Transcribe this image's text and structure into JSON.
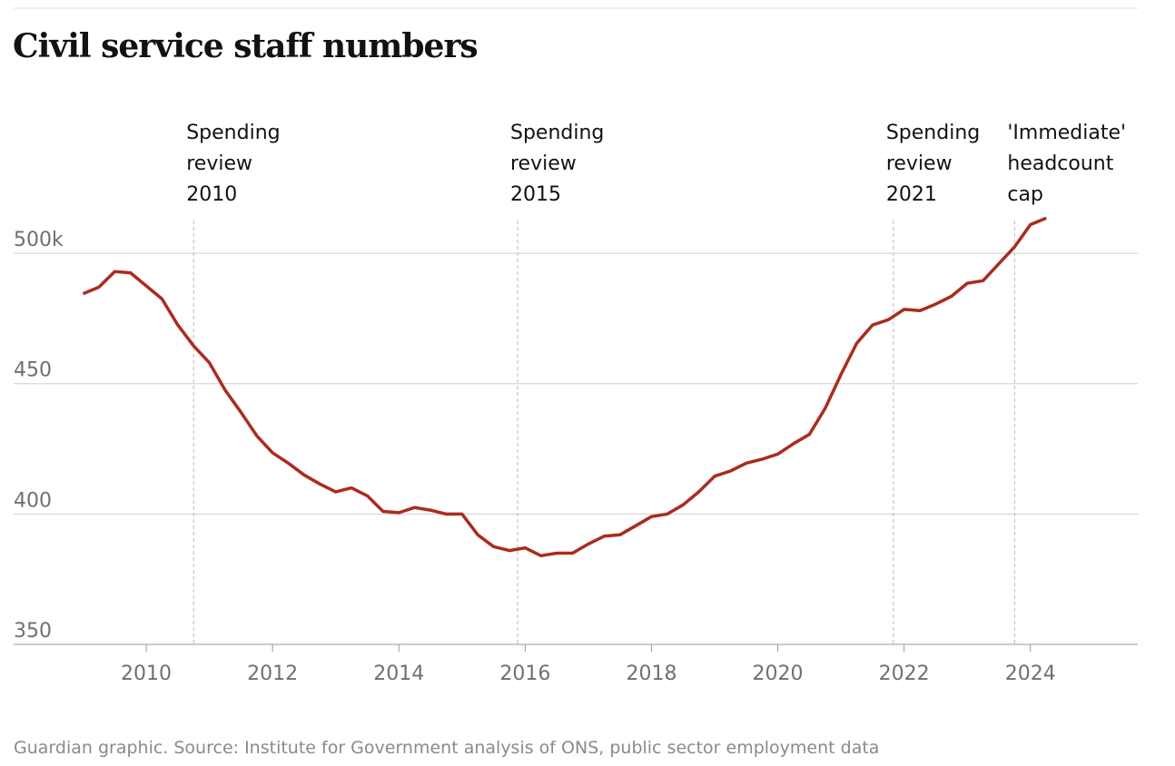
{
  "chart_data": {
    "type": "line",
    "title": "Civil service staff numbers",
    "source": "Guardian graphic. Source: Institute for Government analysis of ONS, public sector employment data",
    "color": "#ab2b1f",
    "x": [
      2009,
      2009.25,
      2009.5,
      2009.75,
      2010,
      2010.25,
      2010.5,
      2010.75,
      2011,
      2011.25,
      2011.5,
      2011.75,
      2012,
      2012.25,
      2012.5,
      2012.75,
      2013,
      2013.25,
      2013.5,
      2013.75,
      2014,
      2014.25,
      2014.5,
      2014.75,
      2015,
      2015.25,
      2015.5,
      2015.75,
      2016,
      2016.25,
      2016.5,
      2016.75,
      2017,
      2017.25,
      2017.5,
      2017.75,
      2018,
      2018.25,
      2018.5,
      2018.75,
      2019,
      2019.25,
      2019.5,
      2019.75,
      2020,
      2020.25,
      2020.5,
      2020.75,
      2021,
      2021.25,
      2021.5,
      2021.75,
      2022,
      2022.25,
      2022.5,
      2022.75,
      2023,
      2023.25,
      2023.5,
      2023.75,
      2024,
      2024.25
    ],
    "values": [
      484.5,
      487,
      493,
      492.5,
      487.5,
      482.5,
      472.5,
      464.5,
      458,
      447.5,
      439,
      430,
      423.5,
      419.5,
      415,
      411.5,
      408.5,
      410,
      407,
      401,
      400.5,
      402.5,
      401.5,
      400,
      400,
      392,
      387.5,
      386,
      387,
      384,
      385,
      385,
      388.5,
      391.5,
      392,
      395.5,
      399,
      400,
      403.5,
      408.5,
      414.5,
      416.5,
      419.5,
      421,
      423,
      427,
      430.5,
      440.5,
      453.5,
      465.5,
      472.5,
      474.5,
      478.5,
      478,
      480.5,
      483.5,
      488.5,
      489.5,
      496,
      502.5,
      511,
      513.5
    ],
    "xlim": [
      2007.9,
      2025.7
    ],
    "xticks": [
      2010,
      2012,
      2014,
      2016,
      2018,
      2020,
      2022,
      2024
    ],
    "ylim": [
      350,
      515
    ],
    "yticks": [
      350,
      400,
      450,
      {
        "value": 500,
        "label": "500k"
      }
    ],
    "grid": true,
    "annotations": [
      {
        "x": 2010.75,
        "lines": [
          "Spending",
          "review",
          "2010"
        ]
      },
      {
        "x": 2015.88,
        "lines": [
          "Spending",
          "review",
          "2015"
        ]
      },
      {
        "x": 2021.83,
        "lines": [
          "Spending",
          "review",
          "2021"
        ]
      },
      {
        "x": 2023.75,
        "lines": [
          "'Immediate'",
          "headcount",
          "cap"
        ]
      }
    ]
  }
}
